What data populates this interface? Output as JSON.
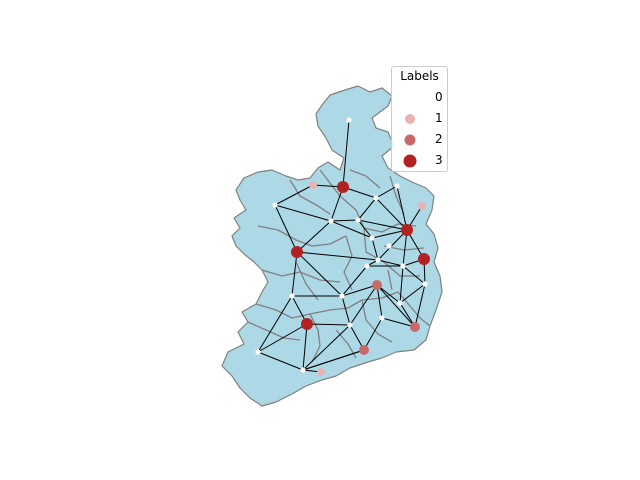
{
  "map": {
    "fill_color": "#add8e6",
    "border_color": "#808080",
    "edge_color": "#000000"
  },
  "legend": {
    "title": "Labels",
    "items": [
      {
        "label": "0",
        "color": "#ffffff"
      },
      {
        "label": "1",
        "color": "#e8b3b3"
      },
      {
        "label": "2",
        "color": "#c96a6a"
      },
      {
        "label": "3",
        "color": "#b22222"
      }
    ]
  },
  "graph": {
    "nodes": [
      {
        "id": "n01",
        "label": 0
      },
      {
        "id": "n02",
        "label": 1
      },
      {
        "id": "n03",
        "label": 3
      },
      {
        "id": "n04",
        "label": 0
      },
      {
        "id": "n05",
        "label": 1
      },
      {
        "id": "n06",
        "label": 0
      },
      {
        "id": "n07",
        "label": 0
      },
      {
        "id": "n08",
        "label": 0
      },
      {
        "id": "n09",
        "label": 0
      },
      {
        "id": "n10",
        "label": 3
      },
      {
        "id": "n11",
        "label": 0
      },
      {
        "id": "n12",
        "label": 3
      },
      {
        "id": "n13",
        "label": 0
      },
      {
        "id": "n14",
        "label": 3
      },
      {
        "id": "n15",
        "label": 0
      },
      {
        "id": "n16",
        "label": 0
      },
      {
        "id": "n17",
        "label": 0
      },
      {
        "id": "n18",
        "label": 0
      },
      {
        "id": "n19",
        "label": 0
      },
      {
        "id": "n20",
        "label": 0
      },
      {
        "id": "n21",
        "label": 0
      },
      {
        "id": "n22",
        "label": 3
      },
      {
        "id": "n23",
        "label": 2
      },
      {
        "id": "n24",
        "label": 0
      },
      {
        "id": "n25",
        "label": 2
      },
      {
        "id": "n26",
        "label": 0
      },
      {
        "id": "n27",
        "label": 0
      },
      {
        "id": "n28",
        "label": 2
      },
      {
        "id": "n29",
        "label": 0
      },
      {
        "id": "n30",
        "label": 1
      }
    ],
    "edges": [
      [
        "n01",
        "n03"
      ],
      [
        "n03",
        "n02"
      ],
      [
        "n03",
        "n06"
      ],
      [
        "n03",
        "n07"
      ],
      [
        "n02",
        "n04"
      ],
      [
        "n04",
        "n06"
      ],
      [
        "n05",
        "n12"
      ],
      [
        "n06",
        "n08"
      ],
      [
        "n06",
        "n09"
      ],
      [
        "n06",
        "n10"
      ],
      [
        "n07",
        "n08"
      ],
      [
        "n07",
        "n12"
      ],
      [
        "n07",
        "n11"
      ],
      [
        "n08",
        "n09"
      ],
      [
        "n08",
        "n12"
      ],
      [
        "n09",
        "n12"
      ],
      [
        "n09",
        "n16"
      ],
      [
        "n10",
        "n19"
      ],
      [
        "n10",
        "n16"
      ],
      [
        "n10",
        "n20"
      ],
      [
        "n10",
        "n04"
      ],
      [
        "n11",
        "n12"
      ],
      [
        "n12",
        "n14"
      ],
      [
        "n12",
        "n17"
      ],
      [
        "n12",
        "n16"
      ],
      [
        "n14",
        "n17"
      ],
      [
        "n14",
        "n18"
      ],
      [
        "n16",
        "n17"
      ],
      [
        "n16",
        "n15"
      ],
      [
        "n15",
        "n20"
      ],
      [
        "n15",
        "n17"
      ],
      [
        "n17",
        "n18"
      ],
      [
        "n17",
        "n21"
      ],
      [
        "n18",
        "n21"
      ],
      [
        "n18",
        "n28"
      ],
      [
        "n19",
        "n20"
      ],
      [
        "n19",
        "n22"
      ],
      [
        "n19",
        "n27"
      ],
      [
        "n20",
        "n23"
      ],
      [
        "n20",
        "n24"
      ],
      [
        "n21",
        "n23"
      ],
      [
        "n21",
        "n28"
      ],
      [
        "n22",
        "n27"
      ],
      [
        "n22",
        "n24"
      ],
      [
        "n22",
        "n29"
      ],
      [
        "n23",
        "n24"
      ],
      [
        "n23",
        "n28"
      ],
      [
        "n23",
        "n26"
      ],
      [
        "n24",
        "n25"
      ],
      [
        "n24",
        "n29"
      ],
      [
        "n25",
        "n26"
      ],
      [
        "n25",
        "n29"
      ],
      [
        "n26",
        "n28"
      ],
      [
        "n27",
        "n29"
      ],
      [
        "n29",
        "n30"
      ],
      [
        "n29",
        "n25"
      ]
    ]
  }
}
